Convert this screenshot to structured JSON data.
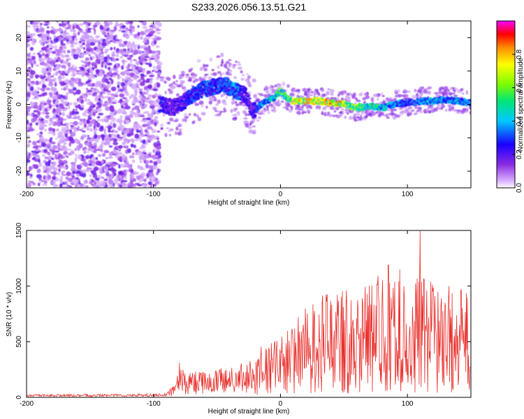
{
  "title": "S233.2026.056.13.51.G21",
  "chart_data": [
    {
      "type": "heatmap",
      "xlabel": "Height of straight line (km)",
      "ylabel": "Frequency (Hz)",
      "xlim": [
        -200,
        150
      ],
      "ylim": [
        -25,
        25
      ],
      "x_ticks": [
        -200,
        -100,
        0,
        100
      ],
      "x_tick_labels": [
        "-200",
        "-100",
        "0",
        "100"
      ],
      "y_ticks": [
        -20,
        -10,
        0,
        10,
        20
      ],
      "y_tick_labels": [
        "-20",
        "-10",
        "0",
        "10",
        "20"
      ],
      "colorbar": {
        "label": "Normalized spectral amplitude",
        "range": [
          0,
          1
        ],
        "ticks": [
          0.0,
          0.2,
          0.4,
          0.6,
          0.8
        ],
        "tick_labels": [
          "0.0",
          "0.2",
          "0.4",
          "0.6",
          "0.8"
        ]
      },
      "ridge": {
        "description_points_x": [
          -93,
          -85,
          -75,
          -65,
          -55,
          -45,
          -35,
          -28,
          -22,
          -18,
          -12,
          -5,
          0,
          5,
          10,
          20,
          30,
          40,
          50,
          60,
          70,
          80,
          90,
          100,
          110,
          120,
          130,
          140,
          150
        ],
        "frequency_hz": [
          0,
          -1,
          1,
          4,
          5,
          6,
          4,
          3,
          -2,
          -1,
          1,
          2,
          4,
          2,
          1,
          1,
          1,
          0.5,
          0,
          -1,
          -0.5,
          -1,
          0,
          0.5,
          1,
          1,
          1.5,
          1,
          0.5
        ],
        "amplitude": [
          0.25,
          0.2,
          0.25,
          0.3,
          0.3,
          0.3,
          0.35,
          0.25,
          0.2,
          0.3,
          0.4,
          0.45,
          0.55,
          0.5,
          0.7,
          0.75,
          0.7,
          0.85,
          0.7,
          0.6,
          0.5,
          0.45,
          0.35,
          0.3,
          0.35,
          0.4,
          0.35,
          0.4,
          0.35
        ]
      }
    },
    {
      "type": "line",
      "xlabel": "Height of straight line (km)",
      "ylabel": "SNR (10 * v/v)",
      "xlim": [
        -200,
        150
      ],
      "ylim": [
        0,
        1500
      ],
      "x_ticks": [
        -200,
        -100,
        0,
        100
      ],
      "x_tick_labels": [
        "-200",
        "-100",
        "0",
        "100"
      ],
      "y_ticks": [
        0,
        500,
        1000,
        1500
      ],
      "y_tick_labels": [
        "0",
        "500",
        "1000",
        "1500"
      ],
      "color": "#e8302c",
      "envelope_x": [
        -200,
        -100,
        -90,
        -82,
        -80,
        -75,
        -60,
        -40,
        -25,
        -20,
        -10,
        0,
        10,
        20,
        30,
        40,
        45,
        50,
        60,
        70,
        80,
        90,
        100,
        110,
        120,
        130,
        140,
        150
      ],
      "envelope_y": [
        20,
        25,
        30,
        120,
        260,
        180,
        190,
        220,
        260,
        300,
        330,
        380,
        460,
        560,
        620,
        660,
        700,
        690,
        650,
        740,
        760,
        740,
        700,
        760,
        720,
        700,
        680,
        660
      ]
    }
  ]
}
